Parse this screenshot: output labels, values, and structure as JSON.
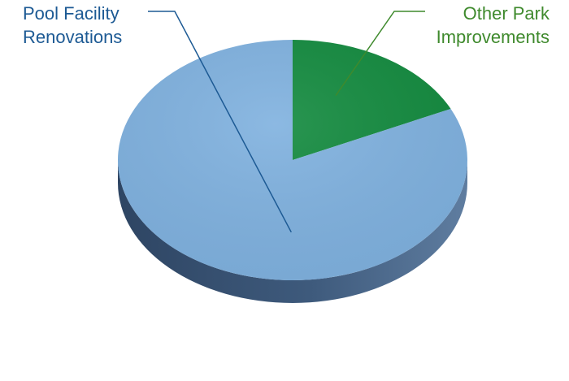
{
  "chart_data": {
    "type": "pie",
    "title": "",
    "style": "3d",
    "categories": [
      "Pool Facility Renovations",
      "Other Park Improvements"
    ],
    "values": [
      82,
      18
    ],
    "colors": [
      "#7fb1df",
      "#128a3e"
    ],
    "side_color": "#3b5677",
    "label_colors": [
      "#1d5a94",
      "#3f8a2d"
    ],
    "labels": [
      {
        "line1": "Pool Facility",
        "line2": "Renovations"
      },
      {
        "line1": "Other Park",
        "line2": "Improvements"
      }
    ],
    "legend": "none",
    "grid": false
  }
}
